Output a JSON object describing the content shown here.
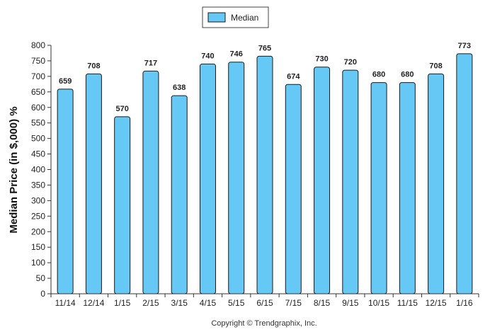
{
  "chart_data": {
    "type": "bar",
    "categories": [
      "11/14",
      "12/14",
      "1/15",
      "2/15",
      "3/15",
      "4/15",
      "5/15",
      "6/15",
      "7/15",
      "8/15",
      "9/15",
      "10/15",
      "11/15",
      "12/15",
      "1/16"
    ],
    "series": [
      {
        "name": "Median",
        "values": [
          659,
          708,
          570,
          717,
          638,
          740,
          746,
          765,
          674,
          730,
          720,
          680,
          680,
          708,
          773
        ]
      }
    ],
    "ylabel": "Median Price (in $,000) %",
    "xlabel": "",
    "ylim": [
      0,
      800
    ],
    "yticks": [
      0,
      50,
      100,
      150,
      200,
      250,
      300,
      350,
      400,
      450,
      500,
      550,
      600,
      650,
      700,
      750,
      800
    ],
    "grid": false,
    "legend": "top-center",
    "colors": {
      "bar_fill": "#66c8f5",
      "bar_stroke": "#1a1a1a",
      "axis": "#333333"
    }
  },
  "copyright": "Copyright © Trendgraphix, Inc."
}
